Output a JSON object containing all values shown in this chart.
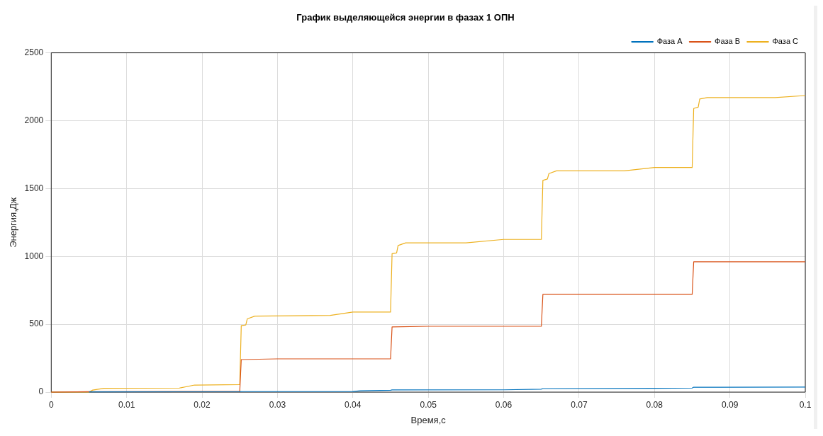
{
  "chart_data": {
    "type": "line",
    "title": "График выделяющейся энергии в фазах 1 ОПН",
    "xlabel": "Время,с",
    "ylabel": "Энергия,Дж",
    "xlim": [
      0,
      0.1
    ],
    "xticks": [
      0,
      0.01,
      0.02,
      0.03,
      0.04,
      0.05,
      0.06,
      0.07,
      0.08,
      0.09,
      0.1
    ],
    "ylim": [
      0,
      2500
    ],
    "yticks": [
      0,
      500,
      1000,
      1500,
      2000,
      2500
    ],
    "grid": true,
    "legend": "top right",
    "marker": "none",
    "line_style": "solid",
    "series": [
      {
        "name": "Фаза A",
        "color": "#0072bd",
        "x": [
          0.005,
          0.025,
          0.0253,
          0.04,
          0.041,
          0.045,
          0.0452,
          0.06,
          0.065,
          0.0652,
          0.08,
          0.085,
          0.0852,
          0.1
        ],
        "values": [
          2,
          3,
          4,
          5,
          10,
          14,
          16,
          17,
          22,
          26,
          28,
          30,
          36,
          37
        ]
      },
      {
        "name": "Фаза B",
        "color": "#d95319",
        "x": [
          0,
          0.005,
          0.025,
          0.0252,
          0.03,
          0.045,
          0.0452,
          0.05,
          0.065,
          0.0652,
          0.085,
          0.0852,
          0.1
        ],
        "values": [
          0,
          3,
          5,
          240,
          245,
          245,
          480,
          485,
          485,
          720,
          720,
          960,
          960
        ]
      },
      {
        "name": "Фаза C",
        "color": "#edb120",
        "x": [
          0,
          0.005,
          0.0055,
          0.007,
          0.017,
          0.019,
          0.025,
          0.0252,
          0.0258,
          0.026,
          0.027,
          0.037,
          0.04,
          0.045,
          0.0452,
          0.0458,
          0.046,
          0.047,
          0.055,
          0.06,
          0.065,
          0.0652,
          0.0658,
          0.066,
          0.067,
          0.076,
          0.08,
          0.085,
          0.0852,
          0.0858,
          0.086,
          0.087,
          0.096,
          0.1
        ],
        "values": [
          0,
          0,
          15,
          28,
          30,
          52,
          55,
          490,
          495,
          540,
          560,
          565,
          590,
          590,
          1020,
          1025,
          1080,
          1100,
          1100,
          1125,
          1125,
          1560,
          1570,
          1610,
          1630,
          1630,
          1655,
          1655,
          2090,
          2100,
          2160,
          2170,
          2170,
          2185
        ]
      }
    ]
  }
}
